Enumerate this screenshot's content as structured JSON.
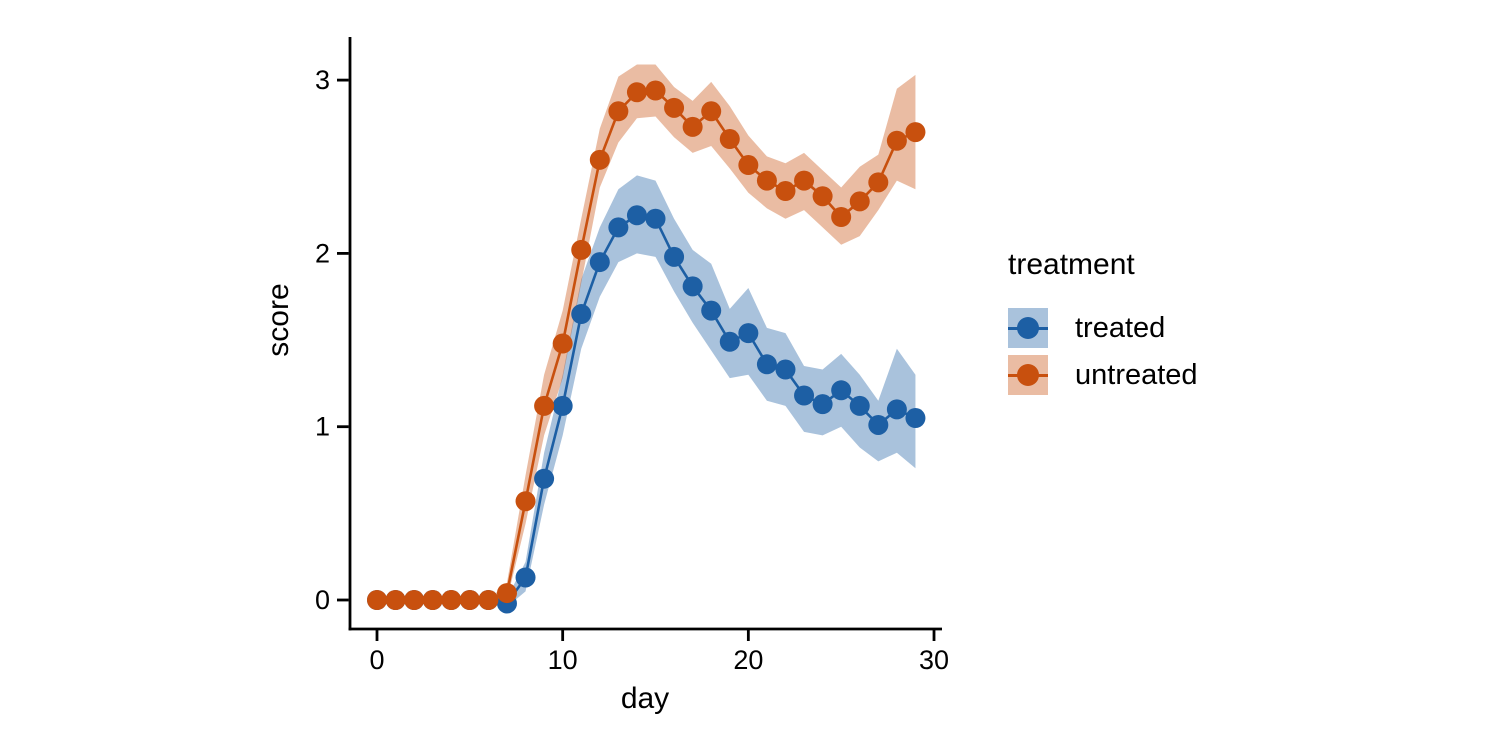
{
  "chart_data": {
    "type": "line",
    "title": "",
    "xlabel": "day",
    "ylabel": "score",
    "xlim": [
      0,
      30
    ],
    "ylim": [
      0,
      3
    ],
    "x_ticks": [
      0,
      10,
      20,
      30
    ],
    "y_ticks": [
      0,
      1,
      2,
      3
    ],
    "grid": false,
    "ribbon_opacity": 0.38,
    "legend": {
      "title": "treatment",
      "position": "right"
    },
    "x": [
      0,
      1,
      2,
      3,
      4,
      5,
      6,
      7,
      8,
      9,
      10,
      11,
      12,
      13,
      14,
      15,
      16,
      17,
      18,
      19,
      20,
      21,
      22,
      23,
      24,
      25,
      26,
      27,
      28,
      29
    ],
    "series": [
      {
        "name": "treated",
        "color": "#1d5fa4",
        "values": [
          0,
          0,
          0,
          0,
          0,
          0,
          0,
          -0.02,
          0.13,
          0.7,
          1.12,
          1.65,
          1.95,
          2.15,
          2.22,
          2.2,
          1.98,
          1.81,
          1.67,
          1.49,
          1.54,
          1.36,
          1.33,
          1.18,
          1.13,
          1.21,
          1.12,
          1.01,
          1.1,
          1.05
        ],
        "ribbon_low": [
          0,
          0,
          0,
          0,
          0,
          0,
          0,
          -0.04,
          0.05,
          0.55,
          0.95,
          1.45,
          1.75,
          1.95,
          2.0,
          1.98,
          1.78,
          1.6,
          1.44,
          1.28,
          1.3,
          1.15,
          1.12,
          0.97,
          0.95,
          1.0,
          0.88,
          0.8,
          0.85,
          0.76
        ],
        "ribbon_high": [
          0,
          0,
          0,
          0,
          0,
          0,
          0,
          0.01,
          0.22,
          0.85,
          1.3,
          1.85,
          2.15,
          2.37,
          2.45,
          2.42,
          2.2,
          2.02,
          1.94,
          1.68,
          1.8,
          1.57,
          1.54,
          1.35,
          1.33,
          1.42,
          1.3,
          1.15,
          1.45,
          1.3
        ]
      },
      {
        "name": "untreated",
        "color": "#c8500e",
        "values": [
          0,
          0,
          0,
          0,
          0,
          0,
          0,
          0.04,
          0.57,
          1.12,
          1.48,
          2.02,
          2.54,
          2.82,
          2.93,
          2.94,
          2.84,
          2.73,
          2.82,
          2.66,
          2.51,
          2.42,
          2.36,
          2.42,
          2.33,
          2.21,
          2.3,
          2.41,
          2.65,
          2.7
        ],
        "ribbon_low": [
          0,
          0,
          0,
          0,
          0,
          0,
          0,
          0.0,
          0.44,
          0.95,
          1.28,
          1.83,
          2.38,
          2.64,
          2.78,
          2.79,
          2.67,
          2.58,
          2.62,
          2.49,
          2.35,
          2.26,
          2.2,
          2.25,
          2.15,
          2.05,
          2.1,
          2.25,
          2.42,
          2.37
        ],
        "ribbon_high": [
          0,
          0,
          0,
          0,
          0,
          0,
          0,
          0.1,
          0.72,
          1.3,
          1.67,
          2.2,
          2.72,
          3.02,
          3.09,
          3.09,
          2.96,
          2.88,
          2.99,
          2.85,
          2.68,
          2.56,
          2.52,
          2.58,
          2.48,
          2.38,
          2.5,
          2.57,
          2.95,
          3.03
        ]
      }
    ]
  }
}
